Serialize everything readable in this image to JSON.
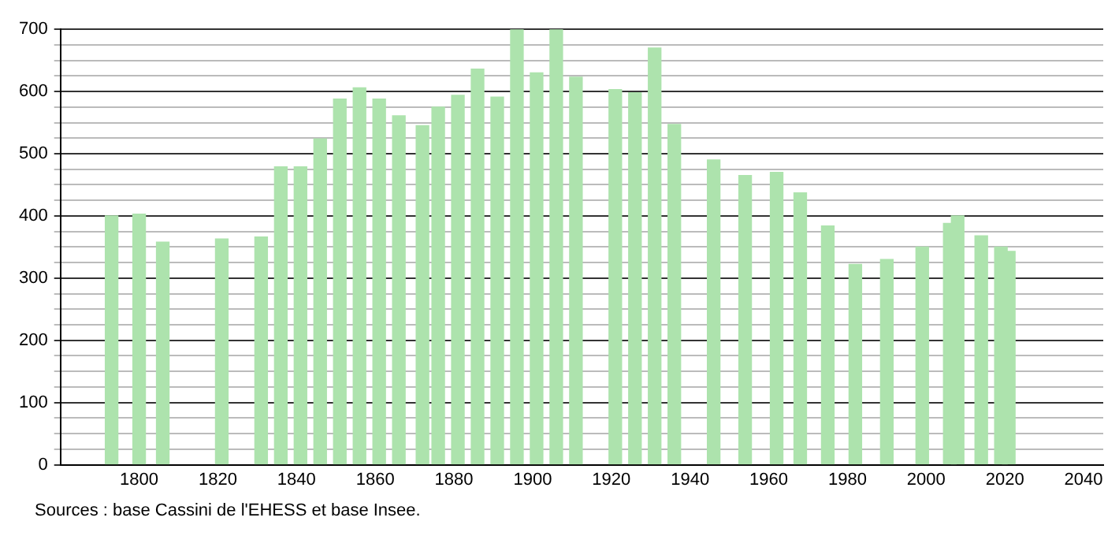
{
  "chart_data": {
    "type": "bar",
    "x": [
      1793,
      1800,
      1806,
      1821,
      1831,
      1836,
      1841,
      1846,
      1851,
      1856,
      1861,
      1866,
      1872,
      1876,
      1881,
      1886,
      1891,
      1896,
      1901,
      1906,
      1911,
      1921,
      1926,
      1931,
      1936,
      1946,
      1954,
      1962,
      1968,
      1975,
      1982,
      1990,
      1999,
      2006,
      2008,
      2014,
      2019,
      2021
    ],
    "values": [
      400,
      403,
      358,
      363,
      366,
      479,
      479,
      524,
      588,
      606,
      588,
      561,
      545,
      575,
      594,
      636,
      591,
      700,
      630,
      700,
      623,
      603,
      598,
      670,
      547,
      490,
      465,
      470,
      437,
      384,
      322,
      330,
      350,
      388,
      400,
      368,
      350,
      343
    ],
    "color": "#ade3ad",
    "xlim": [
      1780,
      2045
    ],
    "xticks": [
      1800,
      1820,
      1840,
      1860,
      1880,
      1900,
      1920,
      1940,
      1960,
      1980,
      2000,
      2020,
      2040
    ],
    "ylim": [
      0,
      700
    ],
    "yticks": [
      0,
      {
        "value": 25,
        "label": null
      },
      {
        "value": 50,
        "label": null
      },
      {
        "value": 75,
        "label": null
      },
      100,
      {
        "value": 125,
        "label": null
      },
      {
        "value": 150,
        "label": null
      },
      {
        "value": 175,
        "label": null
      },
      200,
      {
        "value": 225,
        "label": null
      },
      {
        "value": 250,
        "label": null
      },
      {
        "value": 275,
        "label": null
      },
      300,
      {
        "value": 325,
        "label": null
      },
      {
        "value": 350,
        "label": null
      },
      {
        "value": 375,
        "label": null
      },
      400,
      {
        "value": 425,
        "label": null
      },
      {
        "value": 450,
        "label": null
      },
      {
        "value": 475,
        "label": null
      },
      500,
      {
        "value": 525,
        "label": null
      },
      {
        "value": 550,
        "label": null
      },
      {
        "value": 575,
        "label": null
      },
      600,
      {
        "value": 625,
        "label": null
      },
      {
        "value": 650,
        "label": null
      },
      {
        "value": 675,
        "label": null
      },
      700
    ],
    "grid": "y",
    "annotations": [
      "Sources : base Cassini de l'EHESS et base Insee."
    ]
  }
}
